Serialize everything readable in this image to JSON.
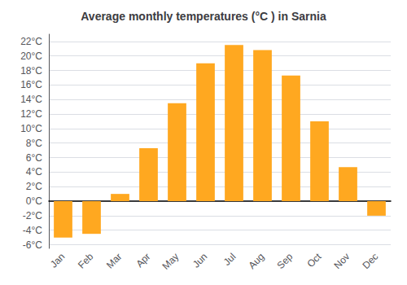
{
  "chart_data": {
    "type": "bar",
    "title": "Average monthly temperatures (°C ) in Sarnia",
    "categories": [
      "Jan",
      "Feb",
      "Mar",
      "Apr",
      "May",
      "Jun",
      "Jul",
      "Aug",
      "Sep",
      "Oct",
      "Nov",
      "Dec"
    ],
    "values": [
      -5.0,
      -4.5,
      1.0,
      7.3,
      13.5,
      19.0,
      21.5,
      20.8,
      17.3,
      11.0,
      4.7,
      -2.0
    ],
    "color": "#FFA820",
    "ylim": [
      -6.5,
      23
    ],
    "yticks": [
      {
        "value": -6,
        "label": "-6°C"
      },
      {
        "value": -4,
        "label": "-4°C"
      },
      {
        "value": -2,
        "label": "-2°C"
      },
      {
        "value": 0,
        "label": "0°C"
      },
      {
        "value": 2,
        "label": "2°C"
      },
      {
        "value": 4,
        "label": "4°C"
      },
      {
        "value": 6,
        "label": "6°C"
      },
      {
        "value": 8,
        "label": "8°C"
      },
      {
        "value": 10,
        "label": "10°C"
      },
      {
        "value": 12,
        "label": "12°C"
      },
      {
        "value": 14,
        "label": "14°C"
      },
      {
        "value": 16,
        "label": "16°C"
      },
      {
        "value": 18,
        "label": "18°C"
      },
      {
        "value": 20,
        "label": "20°C"
      },
      {
        "value": 22,
        "label": "22°C"
      }
    ],
    "grid": true
  }
}
